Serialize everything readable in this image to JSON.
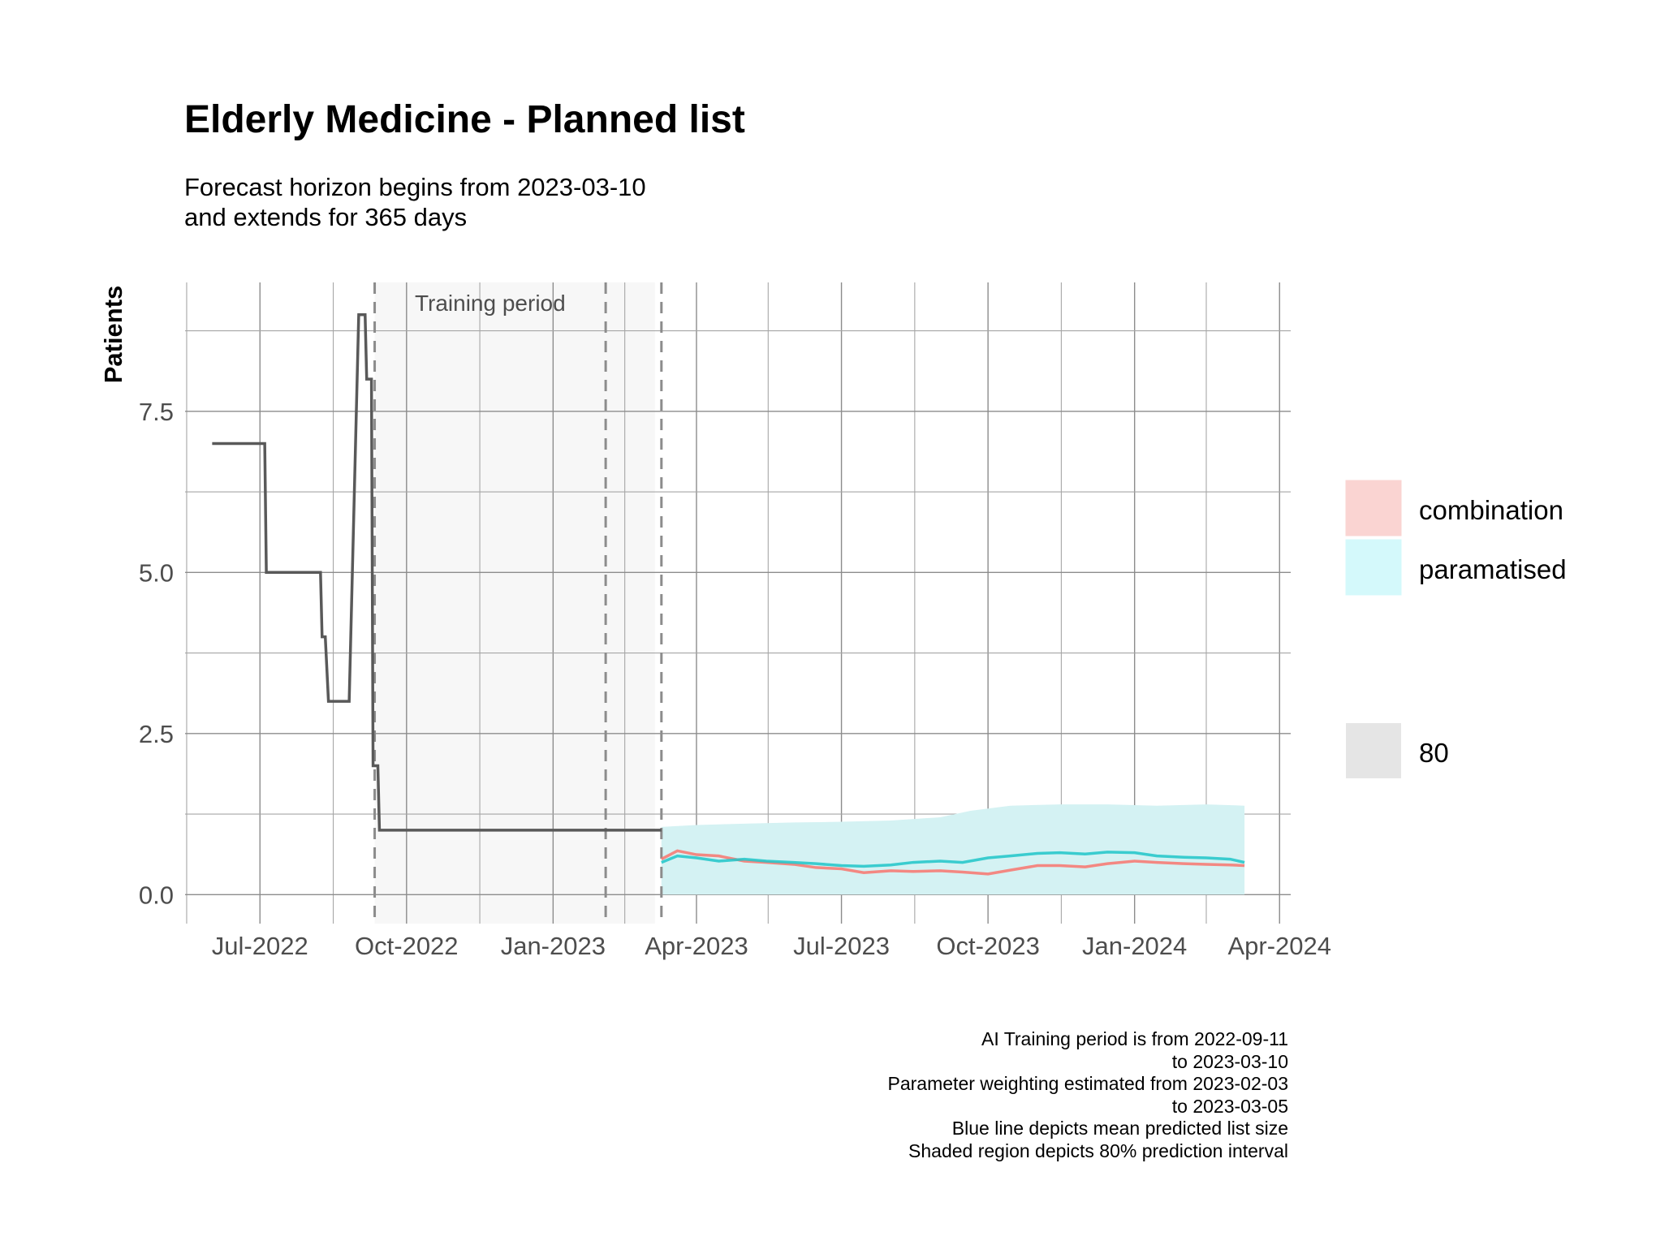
{
  "chart_data": {
    "type": "line",
    "title": "Elderly Medicine - Planned list",
    "subtitle": [
      "Forecast horizon begins from 2023-03-10",
      "and extends for 365 days"
    ],
    "xlabel": "",
    "ylabel": "Patients",
    "x_ticks": [
      "Jul-2022",
      "Oct-2022",
      "Jan-2023",
      "Apr-2023",
      "Jul-2023",
      "Oct-2023",
      "Jan-2024",
      "Apr-2024"
    ],
    "y_ticks": [
      "0.0",
      "2.5",
      "5.0",
      "7.5"
    ],
    "xlim": [
      "2022-05-15",
      "2024-04-08"
    ],
    "ylim": [
      -0.45,
      9.5
    ],
    "grid": true,
    "training_period": {
      "label": "Training period",
      "start": "2022-09-11",
      "end": "2023-03-10"
    },
    "vlines_dashed": [
      "2022-09-11",
      "2023-02-03",
      "2023-03-10"
    ],
    "observed": {
      "color": "#595959",
      "points": [
        [
          "2022-06-01",
          7
        ],
        [
          "2022-07-04",
          7
        ],
        [
          "2022-07-05",
          5
        ],
        [
          "2022-08-08",
          5
        ],
        [
          "2022-08-09",
          4
        ],
        [
          "2022-08-11",
          4
        ],
        [
          "2022-08-13",
          3
        ],
        [
          "2022-08-26",
          3
        ],
        [
          "2022-09-01",
          9
        ],
        [
          "2022-09-05",
          9
        ],
        [
          "2022-09-06",
          8
        ],
        [
          "2022-09-09",
          8
        ],
        [
          "2022-09-10",
          2
        ],
        [
          "2022-09-13",
          2
        ],
        [
          "2022-09-14",
          1
        ],
        [
          "2023-03-10",
          1
        ]
      ]
    },
    "series": [
      {
        "name": "combination",
        "color": "#f8766d",
        "fill": "#fad4d2",
        "values": [
          [
            "2023-03-10",
            0.55
          ],
          [
            "2023-03-20",
            0.68
          ],
          [
            "2023-04-01",
            0.62
          ],
          [
            "2023-04-15",
            0.6
          ],
          [
            "2023-05-01",
            0.52
          ],
          [
            "2023-05-15",
            0.5
          ],
          [
            "2023-06-01",
            0.47
          ],
          [
            "2023-06-15",
            0.42
          ],
          [
            "2023-07-01",
            0.4
          ],
          [
            "2023-07-15",
            0.34
          ],
          [
            "2023-08-01",
            0.37
          ],
          [
            "2023-08-15",
            0.36
          ],
          [
            "2023-09-01",
            0.37
          ],
          [
            "2023-09-15",
            0.35
          ],
          [
            "2023-10-01",
            0.32
          ],
          [
            "2023-10-15",
            0.38
          ],
          [
            "2023-11-01",
            0.45
          ],
          [
            "2023-11-15",
            0.45
          ],
          [
            "2023-12-01",
            0.43
          ],
          [
            "2023-12-15",
            0.48
          ],
          [
            "2024-01-01",
            0.52
          ],
          [
            "2024-01-15",
            0.5
          ],
          [
            "2024-02-01",
            0.48
          ],
          [
            "2024-02-15",
            0.47
          ],
          [
            "2024-03-01",
            0.46
          ],
          [
            "2024-03-10",
            0.45
          ]
        ]
      },
      {
        "name": "paramatised",
        "color": "#1fc5c8",
        "fill": "#d4f9fb",
        "values": [
          [
            "2023-03-10",
            0.5
          ],
          [
            "2023-03-20",
            0.6
          ],
          [
            "2023-04-01",
            0.57
          ],
          [
            "2023-04-15",
            0.52
          ],
          [
            "2023-05-01",
            0.55
          ],
          [
            "2023-05-15",
            0.52
          ],
          [
            "2023-06-01",
            0.5
          ],
          [
            "2023-06-15",
            0.48
          ],
          [
            "2023-07-01",
            0.45
          ],
          [
            "2023-07-15",
            0.44
          ],
          [
            "2023-08-01",
            0.46
          ],
          [
            "2023-08-15",
            0.5
          ],
          [
            "2023-09-01",
            0.52
          ],
          [
            "2023-09-15",
            0.5
          ],
          [
            "2023-10-01",
            0.57
          ],
          [
            "2023-10-15",
            0.6
          ],
          [
            "2023-11-01",
            0.64
          ],
          [
            "2023-11-15",
            0.65
          ],
          [
            "2023-12-01",
            0.63
          ],
          [
            "2023-12-15",
            0.66
          ],
          [
            "2024-01-01",
            0.65
          ],
          [
            "2024-01-15",
            0.6
          ],
          [
            "2024-02-01",
            0.58
          ],
          [
            "2024-02-15",
            0.57
          ],
          [
            "2024-03-01",
            0.55
          ],
          [
            "2024-03-10",
            0.5
          ]
        ]
      }
    ],
    "interval": {
      "level": "80",
      "fill": "#d4f2f3",
      "lower": 0,
      "upper": [
        [
          "2023-03-10",
          1.05
        ],
        [
          "2023-04-01",
          1.08
        ],
        [
          "2023-05-01",
          1.1
        ],
        [
          "2023-06-01",
          1.12
        ],
        [
          "2023-07-01",
          1.13
        ],
        [
          "2023-08-01",
          1.15
        ],
        [
          "2023-09-01",
          1.2
        ],
        [
          "2023-09-20",
          1.3
        ],
        [
          "2023-10-15",
          1.38
        ],
        [
          "2023-11-15",
          1.4
        ],
        [
          "2023-12-15",
          1.4
        ],
        [
          "2024-01-15",
          1.38
        ],
        [
          "2024-02-15",
          1.4
        ],
        [
          "2024-03-10",
          1.38
        ]
      ]
    },
    "legend": {
      "placement": "right",
      "items": [
        {
          "label": "combination",
          "swatch": "#fad4d2"
        },
        {
          "label": "paramatised",
          "swatch": "#d4f9fb"
        }
      ],
      "interval_items": [
        {
          "label": "80",
          "swatch": "#e5e5e5"
        }
      ]
    },
    "caption": [
      "AI Training period is from 2022-09-11",
      "to 2023-03-10",
      "Parameter weighting estimated from 2023-02-03",
      "to 2023-03-05",
      "Blue line depicts mean predicted list size",
      "Shaded region depicts 80% prediction interval"
    ]
  }
}
